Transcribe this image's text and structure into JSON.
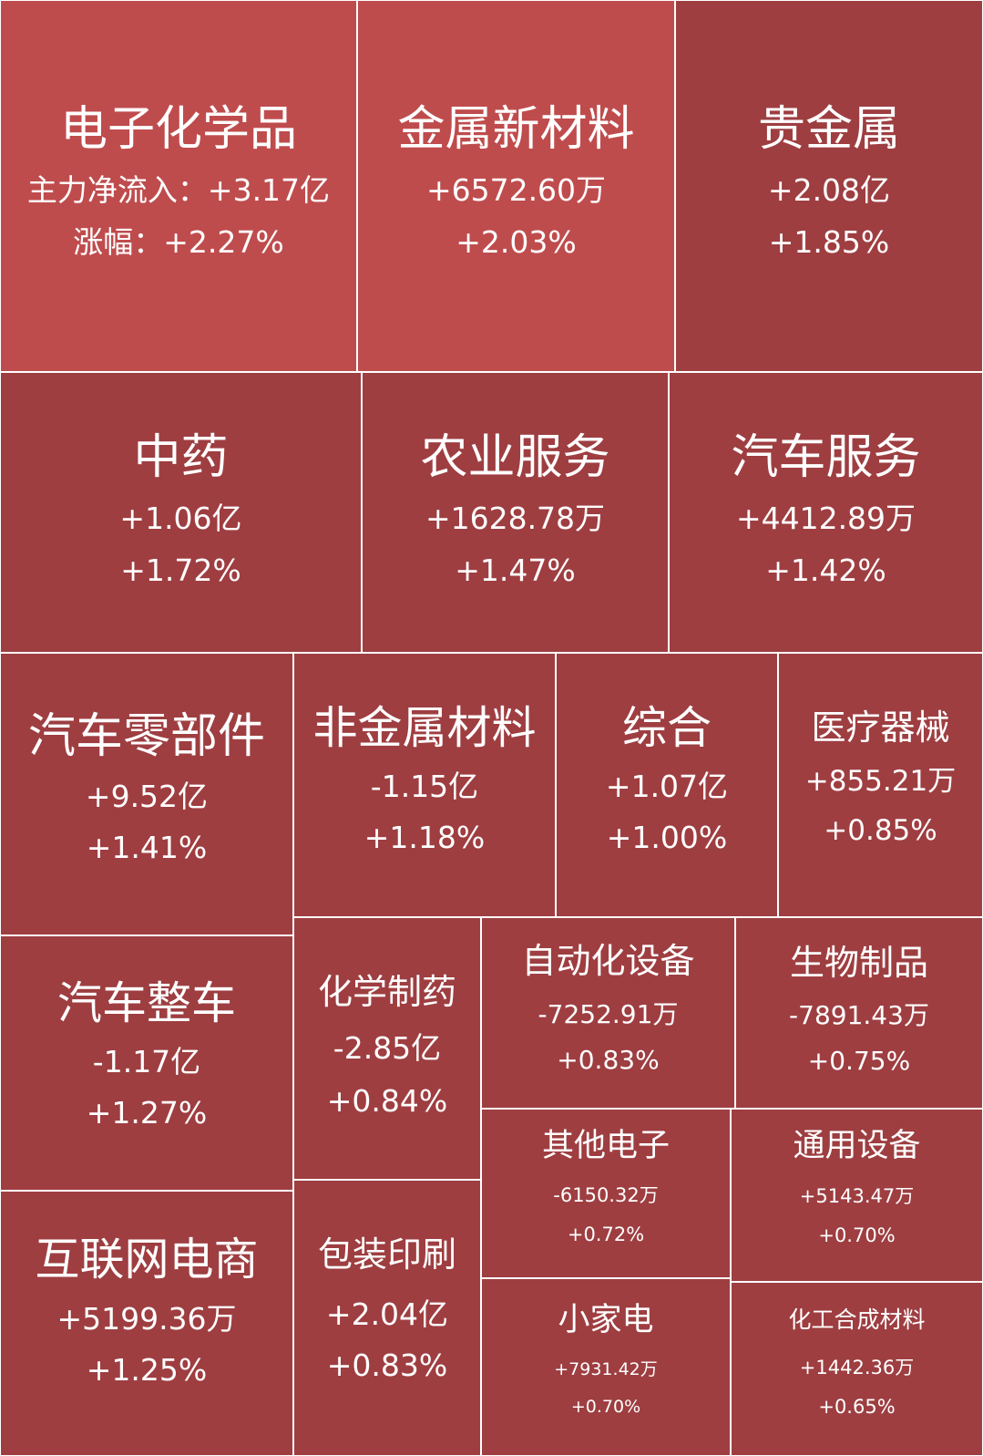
{
  "colors": {
    "strong": "#bf4c4d",
    "normal": "#9e3e41",
    "text": "#ffffff",
    "border": "#ffffff"
  },
  "chart_data": {
    "type": "treemap",
    "value_label": "主力净流入：",
    "change_label": "涨幅：",
    "items": [
      {
        "name": "电子化学品",
        "net_inflow": "+3.17亿",
        "change": "+2.27%"
      },
      {
        "name": "金属新材料",
        "net_inflow": "+6572.60万",
        "change": "+2.03%"
      },
      {
        "name": "贵金属",
        "net_inflow": "+2.08亿",
        "change": "+1.85%"
      },
      {
        "name": "中药",
        "net_inflow": "+1.06亿",
        "change": "+1.72%"
      },
      {
        "name": "农业服务",
        "net_inflow": "+1628.78万",
        "change": "+1.47%"
      },
      {
        "name": "汽车服务",
        "net_inflow": "+4412.89万",
        "change": "+1.42%"
      },
      {
        "name": "汽车零部件",
        "net_inflow": "+9.52亿",
        "change": "+1.41%"
      },
      {
        "name": "非金属材料",
        "net_inflow": "-1.15亿",
        "change": "+1.18%"
      },
      {
        "name": "综合",
        "net_inflow": "+1.07亿",
        "change": "+1.00%"
      },
      {
        "name": "医疗器械",
        "net_inflow": "+855.21万",
        "change": "+0.85%"
      },
      {
        "name": "汽车整车",
        "net_inflow": "-1.17亿",
        "change": "+1.27%"
      },
      {
        "name": "化学制药",
        "net_inflow": "-2.85亿",
        "change": "+0.84%"
      },
      {
        "name": "自动化设备",
        "net_inflow": "-7252.91万",
        "change": "+0.83%"
      },
      {
        "name": "生物制品",
        "net_inflow": "-7891.43万",
        "change": "+0.75%"
      },
      {
        "name": "其他电子",
        "net_inflow": "-6150.32万",
        "change": "+0.72%"
      },
      {
        "name": "通用设备",
        "net_inflow": "+5143.47万",
        "change": "+0.70%"
      },
      {
        "name": "互联网电商",
        "net_inflow": "+5199.36万",
        "change": "+1.25%"
      },
      {
        "name": "包装印刷",
        "net_inflow": "+2.04亿",
        "change": "+0.83%"
      },
      {
        "name": "小家电",
        "net_inflow": "+7931.42万",
        "change": "+0.70%"
      },
      {
        "name": "化工合成材料",
        "net_inflow": "+1442.36万",
        "change": "+0.65%"
      }
    ]
  }
}
